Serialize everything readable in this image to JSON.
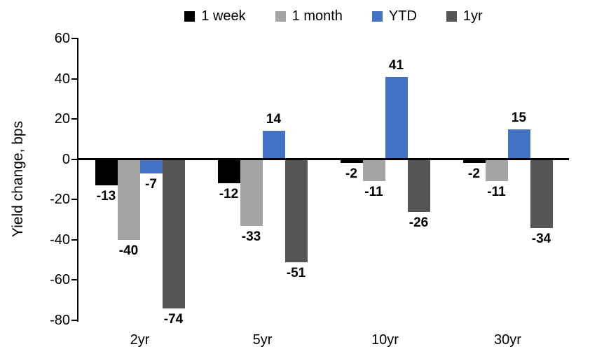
{
  "chart_data": {
    "type": "bar",
    "title": "",
    "xlabel": "",
    "ylabel": "Yield change, bps",
    "ylim": [
      -80,
      60
    ],
    "yticks": [
      60,
      40,
      20,
      0,
      -20,
      -40,
      -60,
      -80
    ],
    "grid": false,
    "legend_position": "top",
    "categories": [
      "2yr",
      "5yr",
      "10yr",
      "30yr"
    ],
    "series": [
      {
        "name": "1 week",
        "color": "#000000",
        "values": [
          -13,
          -12,
          -2,
          -2
        ]
      },
      {
        "name": "1 month",
        "color": "#A5A5A5",
        "values": [
          -40,
          -33,
          -11,
          -11
        ]
      },
      {
        "name": "YTD",
        "color": "#4472C4",
        "values": [
          -7,
          14,
          41,
          15
        ]
      },
      {
        "name": "1yr",
        "color": "#555555",
        "values": [
          -74,
          -51,
          -26,
          -34
        ]
      }
    ]
  }
}
